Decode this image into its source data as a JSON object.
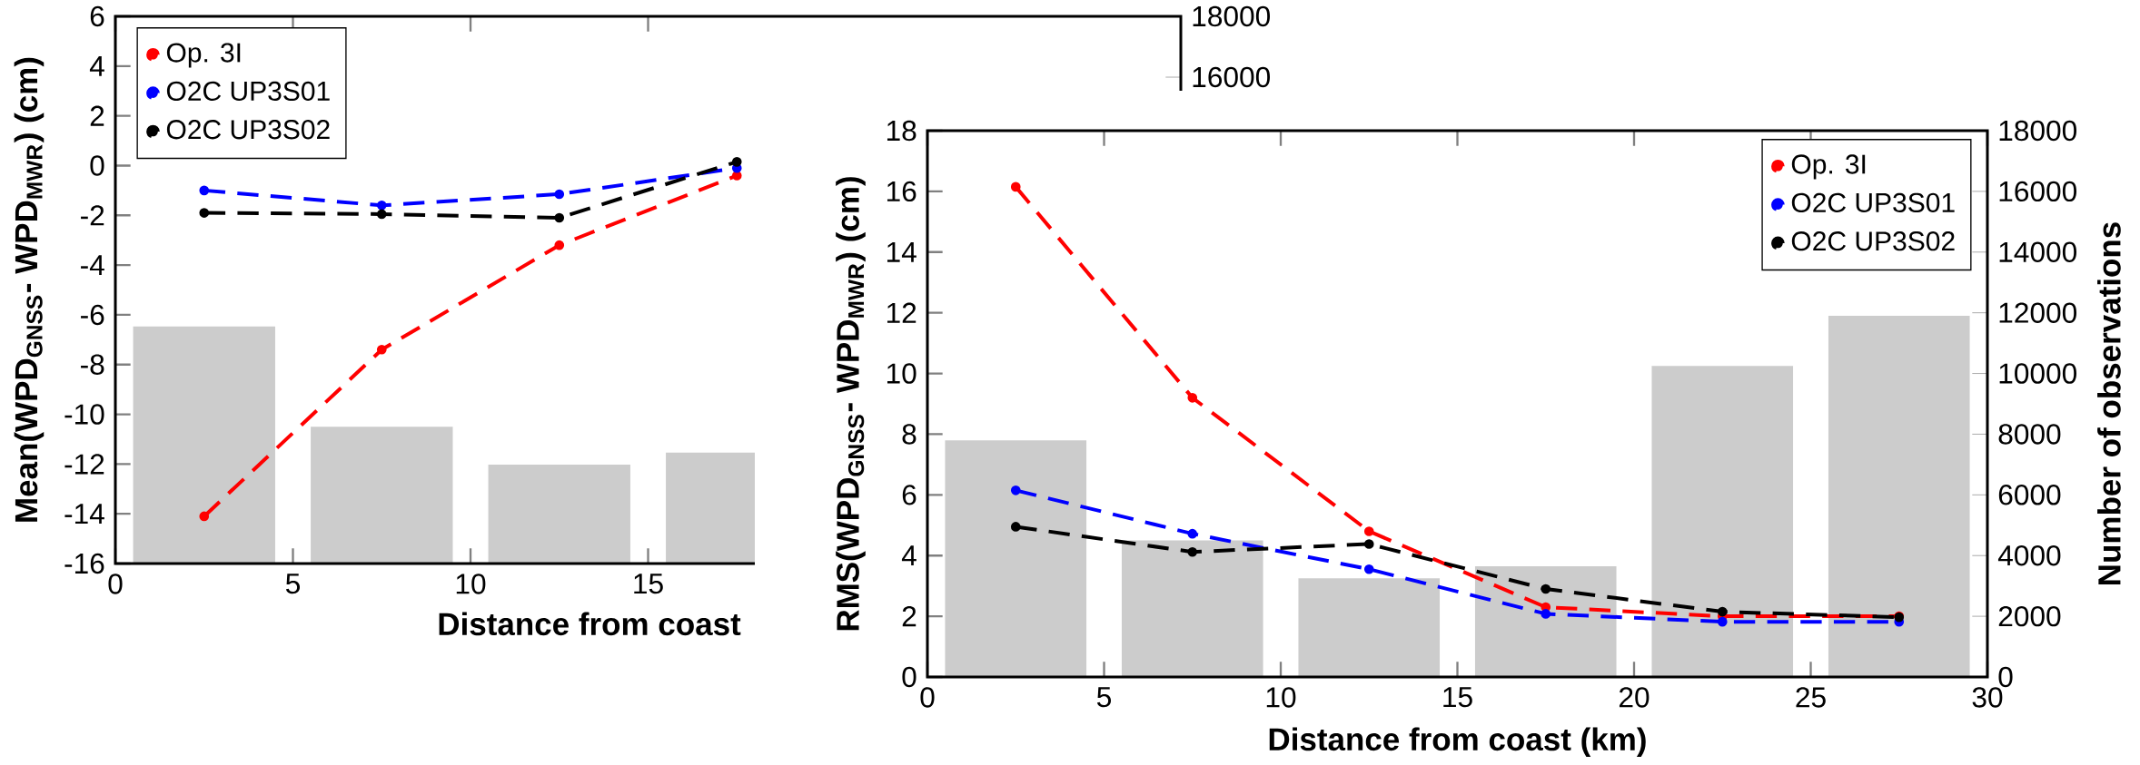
{
  "chart_data": [
    {
      "type": "line",
      "x": [
        2.5,
        7.5,
        12.5,
        17.5
      ],
      "xlim": [
        0,
        30
      ],
      "ylim": [
        -16,
        6
      ],
      "y2lim": [
        0,
        18000
      ],
      "xticks": [
        0,
        5,
        10,
        15
      ],
      "yticks": [
        -16,
        -14,
        -12,
        -10,
        -8,
        -6,
        -4,
        -2,
        0,
        2,
        4,
        6
      ],
      "y2ticks": [
        16000,
        18000
      ],
      "xlabel": "Distance from coast",
      "ylabel": "Mean(WPD$_{GNSS}$- WPD$_{MWR}$) (cm)",
      "legend": "top left",
      "marker": "circle",
      "line_style": "dashed",
      "series": [
        {
          "type": "bar",
          "axis": "y2",
          "color": "#cccccc",
          "values": [
            7800,
            4500,
            3250,
            3650
          ]
        },
        {
          "name": "Op. 3I",
          "color": "#ff0000",
          "values": [
            -14.1,
            -7.4,
            -3.2,
            -0.4
          ]
        },
        {
          "name": "O2C UP3S01",
          "color": "#0000ff",
          "values": [
            -1.0,
            -1.6,
            -1.15,
            -0.1
          ]
        },
        {
          "name": "O2C UP3S02",
          "color": "#000000",
          "values": [
            -1.9,
            -1.95,
            -2.1,
            0.15
          ]
        }
      ]
    },
    {
      "type": "line",
      "x": [
        2.5,
        7.5,
        12.5,
        17.5,
        22.5,
        27.5
      ],
      "xlim": [
        0,
        30
      ],
      "ylim": [
        0,
        18
      ],
      "y2lim": [
        0,
        18000
      ],
      "xticks": [
        0,
        5,
        10,
        15,
        20,
        25,
        30
      ],
      "yticks": [
        0,
        2,
        4,
        6,
        8,
        10,
        12,
        14,
        16,
        18
      ],
      "y2ticks": [
        0,
        2000,
        4000,
        6000,
        8000,
        10000,
        12000,
        14000,
        16000,
        18000
      ],
      "xlabel": "Distance from coast (km)",
      "ylabel": "RMS(WPD$_{GNSS}$- WPD$_{MWR}$) (cm)",
      "y2label": "Number of observations",
      "legend": "top right",
      "marker": "circle",
      "line_style": "dashed",
      "series": [
        {
          "type": "bar",
          "axis": "y2",
          "color": "#cccccc",
          "values": [
            7800,
            4500,
            3250,
            3650,
            10250,
            11900
          ]
        },
        {
          "name": "Op. 3I",
          "color": "#ff0000",
          "values": [
            16.15,
            9.2,
            4.8,
            2.3,
            2.0,
            2.0
          ]
        },
        {
          "name": "O2C UP3S01",
          "color": "#0000ff",
          "values": [
            6.15,
            4.72,
            3.55,
            2.08,
            1.82,
            1.82
          ]
        },
        {
          "name": "O2C UP3S02",
          "color": "#000000",
          "values": [
            4.95,
            4.12,
            4.38,
            2.9,
            2.15,
            1.97
          ]
        }
      ]
    }
  ]
}
